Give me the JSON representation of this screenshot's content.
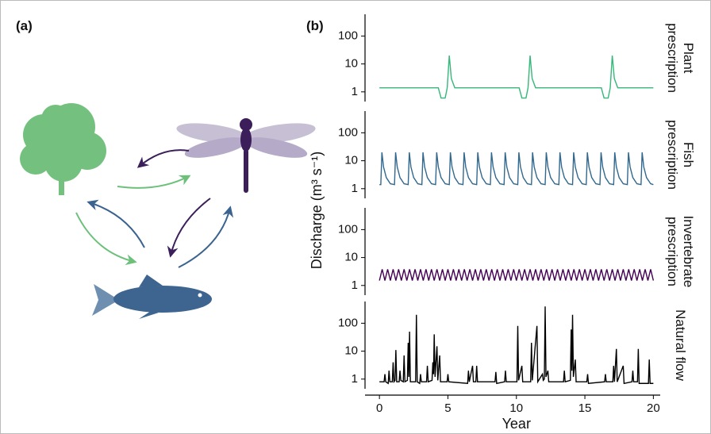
{
  "panels": {
    "a": "(a)",
    "b": "(b)"
  },
  "ylabel": "Discharge (m³ s⁻¹)",
  "chart_data": [
    {
      "type": "line",
      "label": [
        "Plant",
        "prescription"
      ],
      "log": true,
      "xlim": [
        -1,
        20.5
      ],
      "ylim": [
        0.45,
        600
      ],
      "yticks": [
        1,
        10,
        100
      ],
      "x": [
        0,
        4.3,
        4.5,
        4.8,
        4.95,
        5.1,
        5.25,
        5.5,
        10.2,
        10.4,
        10.7,
        10.85,
        11.0,
        11.15,
        11.4,
        16.2,
        16.4,
        16.7,
        16.85,
        17.0,
        17.15,
        17.4,
        20
      ],
      "series": [
        {
          "color": "#35b779",
          "values": [
            1.4,
            1.4,
            0.6,
            0.6,
            1.4,
            20,
            3,
            1.4,
            1.4,
            0.6,
            0.6,
            1.4,
            20,
            3,
            1.4,
            1.4,
            0.6,
            0.6,
            1.4,
            20,
            3,
            1.4,
            1.4
          ]
        }
      ]
    },
    {
      "type": "line",
      "label": [
        "Fish",
        "prescription"
      ],
      "log": true,
      "xlim": [
        -1,
        20.5
      ],
      "ylim": [
        0.45,
        600
      ],
      "yticks": [
        1,
        10,
        100
      ],
      "x": [
        0,
        0.1,
        0.18,
        0.3,
        0.5,
        0.8,
        1.1,
        1.18,
        1.3,
        1.5,
        1.8,
        2.1,
        2.18,
        2.3,
        2.5,
        2.8,
        3.1,
        3.18,
        3.3,
        3.5,
        3.8,
        4.1,
        4.18,
        4.3,
        4.5,
        4.8,
        5.1,
        5.18,
        5.3,
        5.5,
        5.8,
        6.1,
        6.18,
        6.3,
        6.5,
        6.8,
        7.1,
        7.18,
        7.3,
        7.5,
        7.8,
        8.1,
        8.18,
        8.3,
        8.5,
        8.8,
        9.1,
        9.18,
        9.3,
        9.5,
        9.8,
        10.1,
        10.18,
        10.3,
        10.5,
        10.8,
        11.1,
        11.18,
        11.3,
        11.5,
        11.8,
        12.1,
        12.18,
        12.3,
        12.5,
        12.8,
        13.1,
        13.18,
        13.3,
        13.5,
        13.8,
        14.1,
        14.18,
        14.3,
        14.5,
        14.8,
        15.1,
        15.18,
        15.3,
        15.5,
        15.8,
        16.1,
        16.18,
        16.3,
        16.5,
        16.8,
        17.1,
        17.18,
        17.3,
        17.5,
        17.8,
        18.1,
        18.18,
        18.3,
        18.5,
        18.8,
        19.1,
        19.18,
        19.3,
        19.5,
        19.8,
        20
      ],
      "series": [
        {
          "color": "#31688e",
          "values": [
            1.4,
            1.4,
            20,
            6,
            2.5,
            1.5,
            1.4,
            20,
            6,
            2.5,
            1.5,
            1.4,
            20,
            6,
            2.5,
            1.5,
            1.4,
            20,
            6,
            2.5,
            1.5,
            1.4,
            20,
            6,
            2.5,
            1.5,
            1.4,
            20,
            6,
            2.5,
            1.5,
            1.4,
            20,
            6,
            2.5,
            1.5,
            1.4,
            20,
            6,
            2.5,
            1.5,
            1.4,
            20,
            6,
            2.5,
            1.5,
            1.4,
            20,
            6,
            2.5,
            1.5,
            1.4,
            20,
            6,
            2.5,
            1.5,
            1.4,
            20,
            6,
            2.5,
            1.5,
            1.4,
            20,
            6,
            2.5,
            1.5,
            1.4,
            20,
            6,
            2.5,
            1.5,
            1.4,
            20,
            6,
            2.5,
            1.5,
            1.4,
            20,
            6,
            2.5,
            1.5,
            1.4,
            20,
            6,
            2.5,
            1.5,
            1.4,
            20,
            6,
            2.5,
            1.5,
            1.4,
            20,
            6,
            2.5,
            1.5,
            1.4,
            20,
            6,
            2.5,
            1.5,
            1.4
          ]
        }
      ]
    },
    {
      "type": "line",
      "label": [
        "Invertebrate",
        "prescription"
      ],
      "log": true,
      "xlim": [
        -1,
        20.5
      ],
      "ylim": [
        0.45,
        600
      ],
      "yticks": [
        1,
        10,
        100
      ],
      "x": [
        0,
        0.2,
        0.4,
        0.6,
        0.8,
        1,
        1.2,
        1.4,
        1.6,
        1.8,
        2,
        2.2,
        2.4,
        2.6,
        2.8,
        3,
        3.2,
        3.4,
        3.6,
        3.8,
        4,
        4.2,
        4.4,
        4.6,
        4.8,
        5,
        5.2,
        5.4,
        5.6,
        5.8,
        6,
        6.2,
        6.4,
        6.6,
        6.8,
        7,
        7.2,
        7.4,
        7.6,
        7.8,
        8,
        8.2,
        8.4,
        8.6,
        8.8,
        9,
        9.2,
        9.4,
        9.6,
        9.8,
        10,
        10.2,
        10.4,
        10.6,
        10.8,
        11,
        11.2,
        11.4,
        11.6,
        11.8,
        12,
        12.2,
        12.4,
        12.6,
        12.8,
        13,
        13.2,
        13.4,
        13.6,
        13.8,
        14,
        14.2,
        14.4,
        14.6,
        14.8,
        15,
        15.2,
        15.4,
        15.6,
        15.8,
        16,
        16.2,
        16.4,
        16.6,
        16.8,
        17,
        17.2,
        17.4,
        17.6,
        17.8,
        18,
        18.2,
        18.4,
        18.6,
        18.8,
        19,
        19.2,
        19.4,
        19.6,
        19.8,
        20
      ],
      "series": [
        {
          "color": "#440154",
          "values": [
            1.5,
            3.8,
            1.5,
            3.8,
            1.5,
            3.8,
            1.5,
            3.8,
            1.5,
            3.8,
            1.5,
            3.8,
            1.5,
            3.8,
            1.5,
            3.8,
            1.5,
            3.8,
            1.5,
            3.8,
            1.5,
            3.8,
            1.5,
            3.8,
            1.5,
            3.8,
            1.5,
            3.8,
            1.5,
            3.8,
            1.5,
            3.8,
            1.5,
            3.8,
            1.5,
            3.8,
            1.5,
            3.8,
            1.5,
            3.8,
            1.5,
            3.8,
            1.5,
            3.8,
            1.5,
            3.8,
            1.5,
            3.8,
            1.5,
            3.8,
            1.5,
            3.8,
            1.5,
            3.8,
            1.5,
            3.8,
            1.5,
            3.8,
            1.5,
            3.8,
            1.5,
            3.8,
            1.5,
            3.8,
            1.5,
            3.8,
            1.5,
            3.8,
            1.5,
            3.8,
            1.5,
            3.8,
            1.5,
            3.8,
            1.5,
            3.8,
            1.5,
            3.8,
            1.5,
            3.8,
            1.5,
            3.8,
            1.5,
            3.8,
            1.5,
            3.8,
            1.5,
            3.8,
            1.5,
            3.8,
            1.5,
            3.8,
            1.5,
            3.8,
            1.5,
            3.8,
            1.5,
            3.8,
            1.5,
            3.8,
            1.5
          ]
        }
      ]
    },
    {
      "type": "line",
      "label": [
        "Natural flow"
      ],
      "log": true,
      "xlim": [
        -1,
        20.5
      ],
      "ylim": [
        0.45,
        600
      ],
      "yticks": [
        1,
        10,
        100
      ],
      "xticks": [
        0,
        5,
        10,
        15,
        20
      ],
      "xlabel": "Year",
      "x": [
        0,
        0.34,
        0.4,
        0.46,
        0.64,
        0.7,
        0.76,
        0.94,
        1.0,
        1.06,
        1.14,
        1.2,
        1.26,
        1.44,
        1.5,
        1.56,
        1.74,
        1.8,
        1.86,
        2.04,
        2.1,
        2.15,
        2.2,
        2.26,
        2.64,
        2.7,
        2.76,
        2.94,
        3.0,
        3.06,
        3.44,
        3.5,
        3.56,
        3.84,
        3.9,
        3.95,
        4.0,
        4.06,
        4.2,
        4.26,
        4.4,
        4.46,
        4.94,
        5.0,
        5.06,
        6.44,
        6.5,
        6.56,
        6.8,
        6.86,
        7.04,
        7.1,
        7.16,
        8.44,
        8.5,
        8.56,
        9.14,
        9.2,
        9.26,
        10.04,
        10.1,
        10.16,
        10.4,
        10.46,
        11.04,
        11.1,
        11.16,
        11.5,
        11.56,
        11.9,
        11.96,
        12.04,
        12.1,
        12.16,
        12.3,
        12.36,
        13.44,
        13.5,
        13.56,
        13.94,
        14.0,
        14.05,
        14.1,
        14.16,
        14.3,
        14.36,
        15.14,
        15.2,
        15.26,
        16.44,
        16.5,
        16.56,
        17.04,
        17.1,
        17.16,
        17.3,
        17.36,
        17.8,
        17.86,
        18.44,
        18.5,
        18.56,
        18.84,
        18.9,
        18.96,
        19.64,
        19.7,
        19.76,
        20
      ],
      "series": [
        {
          "color": "#000000",
          "values": [
            0.8,
            0.8,
            1.5,
            0.8,
            0.7,
            2,
            0.8,
            0.8,
            4,
            0.8,
            0.9,
            11,
            0.8,
            0.8,
            2,
            0.9,
            0.8,
            7,
            0.8,
            0.9,
            20,
            1.2,
            50,
            0.8,
            0.8,
            200,
            0.8,
            0.7,
            1.5,
            0.8,
            0.8,
            3,
            0.8,
            0.9,
            4,
            1.5,
            40,
            1.2,
            15,
            0.9,
            7,
            0.8,
            0.8,
            1.5,
            0.8,
            0.7,
            2,
            0.8,
            3,
            0.8,
            0.8,
            3,
            0.8,
            0.8,
            1.8,
            0.7,
            0.8,
            2,
            0.8,
            0.8,
            80,
            0.9,
            3,
            0.8,
            0.8,
            20,
            0.9,
            80,
            0.8,
            1.5,
            0.9,
            1.0,
            400,
            1.2,
            2,
            0.8,
            0.8,
            2,
            0.8,
            0.9,
            60,
            2,
            200,
            1.2,
            5,
            0.8,
            0.8,
            1.5,
            0.7,
            0.8,
            1.5,
            0.8,
            0.8,
            3,
            0.8,
            12,
            0.8,
            3,
            0.7,
            0.8,
            2,
            0.8,
            0.8,
            12,
            0.7,
            0.7,
            5,
            0.7,
            0.7
          ]
        }
      ]
    }
  ]
}
